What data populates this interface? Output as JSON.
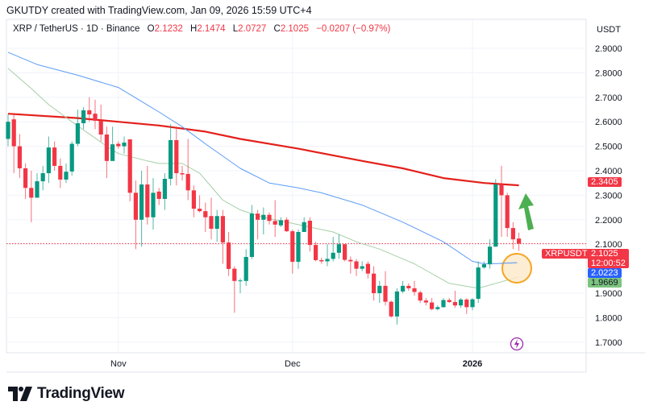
{
  "header": {
    "text": "GKUTDY created with TradingView.com, Jan 09, 2026 15:59 UTC+4"
  },
  "legend": {
    "symbol": "XRP / TetherUS · 1D · Binance",
    "o_label": "O",
    "o": "2.1232",
    "h_label": "H",
    "h": "2.1474",
    "l_label": "L",
    "l": "2.0727",
    "c_label": "C",
    "c": "2.1025",
    "change": "−0.0207 (−0.97%)"
  },
  "price_axis": {
    "unit": "USDT"
  },
  "badges": {
    "ma_red": "2.3405",
    "symbol": "XRPUSDT",
    "last_price": "2.1025",
    "countdown": "12:00:52",
    "ma_blue": "2.0223",
    "ma_green": "1.9669"
  },
  "logo": {
    "text": "TradingView"
  },
  "colors": {
    "up": "#089981",
    "down": "#f23645",
    "ma_red": "#e3201b",
    "ma_blue": "#5b9cf6",
    "ma_green": "#a5cfa7",
    "arrow": "#4caf50",
    "highlight": "#f5a623",
    "lightning": "#9c27b0"
  },
  "chart_data": {
    "type": "candlestick",
    "title": "XRP / TetherUS · 1D · Binance",
    "ylabel": "USDT",
    "ylim": [
      1.65,
      2.95
    ],
    "grid": true,
    "y_ticks": [
      "2.9000",
      "2.8000",
      "2.7000",
      "2.6000",
      "2.5000",
      "2.4000",
      "2.3000",
      "2.2000",
      "2.1000",
      "1.9000",
      "1.8000",
      "1.7000"
    ],
    "x_ticks": [
      {
        "label": "Nov",
        "date": "Nov 1"
      },
      {
        "label": "Dec",
        "date": "Dec 1"
      },
      {
        "label": "2026",
        "date": "Jan 1"
      }
    ],
    "candles_fields": [
      "date",
      "open",
      "high",
      "low",
      "close"
    ],
    "candles": [
      [
        "Oct 13",
        2.53,
        2.63,
        2.5,
        2.6
      ],
      [
        "Oct 14",
        2.61,
        2.63,
        2.39,
        2.5
      ],
      [
        "Oct 15",
        2.5,
        2.55,
        2.37,
        2.41
      ],
      [
        "Oct 16",
        2.41,
        2.43,
        2.285,
        2.33
      ],
      [
        "Oct 17",
        2.33,
        2.4,
        2.19,
        2.29
      ],
      [
        "Oct 18",
        2.29,
        2.39,
        2.29,
        2.357
      ],
      [
        "Oct 19",
        2.357,
        2.42,
        2.32,
        2.39
      ],
      [
        "Oct 20",
        2.39,
        2.54,
        2.35,
        2.495
      ],
      [
        "Oct 21",
        2.495,
        2.52,
        2.4,
        2.42
      ],
      [
        "Oct 22",
        2.42,
        2.45,
        2.33,
        2.364
      ],
      [
        "Oct 23",
        2.364,
        2.43,
        2.35,
        2.396
      ],
      [
        "Oct 24",
        2.397,
        2.52,
        2.38,
        2.51
      ],
      [
        "Oct 25",
        2.51,
        2.65,
        2.5,
        2.594
      ],
      [
        "Oct 26",
        2.594,
        2.66,
        2.57,
        2.647
      ],
      [
        "Oct 27",
        2.647,
        2.7,
        2.6,
        2.63
      ],
      [
        "Oct 28",
        2.633,
        2.69,
        2.57,
        2.604
      ],
      [
        "Oct 29",
        2.604,
        2.67,
        2.52,
        2.548
      ],
      [
        "Oct 30",
        2.548,
        2.58,
        2.37,
        2.44
      ],
      [
        "Oct 31",
        2.44,
        2.58,
        2.44,
        2.508
      ],
      [
        "Nov 1",
        2.51,
        2.52,
        2.49,
        2.5
      ],
      [
        "Nov 2",
        2.5,
        2.54,
        2.47,
        2.515
      ],
      [
        "Nov 3",
        2.528,
        2.53,
        2.275,
        2.31
      ],
      [
        "Nov 4",
        2.31,
        2.36,
        2.08,
        2.2
      ],
      [
        "Nov 5",
        2.2,
        2.4,
        2.09,
        2.344
      ],
      [
        "Nov 6",
        2.344,
        2.42,
        2.18,
        2.21
      ],
      [
        "Nov 7",
        2.21,
        2.37,
        2.16,
        2.31
      ],
      [
        "Nov 8",
        2.315,
        2.33,
        2.26,
        2.285
      ],
      [
        "Nov 9",
        2.285,
        2.39,
        2.24,
        2.367
      ],
      [
        "Nov 10",
        2.367,
        2.59,
        2.34,
        2.525
      ],
      [
        "Nov 11",
        2.525,
        2.58,
        2.34,
        2.39
      ],
      [
        "Nov 12",
        2.39,
        2.42,
        2.36,
        2.385
      ],
      [
        "Nov 13",
        2.387,
        2.53,
        2.28,
        2.32
      ],
      [
        "Nov 14",
        2.32,
        2.34,
        2.21,
        2.245
      ],
      [
        "Nov 15",
        2.245,
        2.3,
        2.23,
        2.235
      ],
      [
        "Nov 16",
        2.235,
        2.27,
        2.15,
        2.21
      ],
      [
        "Nov 17",
        2.215,
        2.29,
        2.12,
        2.163
      ],
      [
        "Nov 18",
        2.163,
        2.24,
        2.11,
        2.215
      ],
      [
        "Nov 19",
        2.215,
        2.24,
        2.02,
        2.107
      ],
      [
        "Nov 20",
        2.107,
        2.15,
        1.97,
        1.999
      ],
      [
        "Nov 21",
        2.0,
        2.01,
        1.82,
        1.95
      ],
      [
        "Nov 22",
        1.95,
        1.96,
        1.9,
        1.952
      ],
      [
        "Nov 23",
        1.95,
        2.08,
        1.93,
        2.048
      ],
      [
        "Nov 24",
        2.048,
        2.26,
        2.04,
        2.225
      ],
      [
        "Nov 25",
        2.225,
        2.24,
        2.12,
        2.2
      ],
      [
        "Nov 26",
        2.2,
        2.25,
        2.14,
        2.22
      ],
      [
        "Nov 27",
        2.22,
        2.23,
        2.18,
        2.195
      ],
      [
        "Nov 28",
        2.195,
        2.28,
        2.13,
        2.18
      ],
      [
        "Nov 29",
        2.177,
        2.21,
        2.17,
        2.198
      ],
      [
        "Nov 30",
        2.2,
        2.21,
        2.15,
        2.153
      ],
      [
        "Dec 1",
        2.153,
        2.16,
        1.98,
        2.028
      ],
      [
        "Dec 2",
        2.028,
        2.16,
        2.0,
        2.15
      ],
      [
        "Dec 3",
        2.15,
        2.21,
        2.15,
        2.19
      ],
      [
        "Dec 4",
        2.196,
        2.21,
        2.07,
        2.097
      ],
      [
        "Dec 5",
        2.097,
        2.11,
        2.03,
        2.035
      ],
      [
        "Dec 6",
        2.035,
        2.045,
        2.02,
        2.03
      ],
      [
        "Dec 7",
        2.03,
        2.1,
        2.01,
        2.04
      ],
      [
        "Dec 8",
        2.04,
        2.13,
        2.03,
        2.065
      ],
      [
        "Dec 9",
        2.065,
        2.14,
        2.04,
        2.1
      ],
      [
        "Dec 10",
        2.1,
        2.1,
        2.03,
        2.036
      ],
      [
        "Dec 11",
        2.036,
        2.05,
        1.98,
        2.03
      ],
      [
        "Dec 12",
        2.03,
        2.04,
        1.97,
        2.0
      ],
      [
        "Dec 13",
        2.0,
        2.03,
        1.99,
        2.01
      ],
      [
        "Dec 14",
        2.02,
        2.03,
        1.96,
        1.98
      ],
      [
        "Dec 15",
        1.98,
        2.01,
        1.87,
        1.9
      ],
      [
        "Dec 16",
        1.9,
        1.95,
        1.86,
        1.93
      ],
      [
        "Dec 17",
        1.93,
        1.99,
        1.85,
        1.865
      ],
      [
        "Dec 18",
        1.865,
        1.87,
        1.8,
        1.805
      ],
      [
        "Dec 19",
        1.805,
        1.92,
        1.772,
        1.907
      ],
      [
        "Dec 20",
        1.907,
        1.95,
        1.9,
        1.93
      ],
      [
        "Dec 21",
        1.93,
        1.94,
        1.91,
        1.92
      ],
      [
        "Dec 22",
        1.92,
        1.95,
        1.89,
        1.905
      ],
      [
        "Dec 23",
        1.903,
        1.91,
        1.86,
        1.87
      ],
      [
        "Dec 24",
        1.87,
        1.88,
        1.85,
        1.862
      ],
      [
        "Dec 25",
        1.862,
        1.88,
        1.83,
        1.835
      ],
      [
        "Dec 26",
        1.835,
        1.85,
        1.83,
        1.843
      ],
      [
        "Dec 27",
        1.843,
        1.88,
        1.84,
        1.872
      ],
      [
        "Dec 28",
        1.872,
        1.88,
        1.86,
        1.864
      ],
      [
        "Dec 29",
        1.864,
        1.91,
        1.84,
        1.85
      ],
      [
        "Dec 30",
        1.85,
        1.88,
        1.84,
        1.874
      ],
      [
        "Dec 31",
        1.874,
        1.88,
        1.815,
        1.843
      ],
      [
        "Jan 1",
        1.843,
        1.88,
        1.83,
        1.875
      ],
      [
        "Jan 2",
        1.877,
        2.03,
        1.86,
        2.005
      ],
      [
        "Jan 3",
        2.005,
        2.03,
        2.0,
        2.018
      ],
      [
        "Jan 4",
        2.018,
        2.12,
        2.0,
        2.09
      ],
      [
        "Jan 5",
        2.09,
        2.366,
        2.09,
        2.344
      ],
      [
        "Jan 6",
        2.344,
        2.42,
        2.13,
        2.3
      ],
      [
        "Jan 7",
        2.3,
        2.31,
        2.13,
        2.166
      ],
      [
        "Jan 8",
        2.166,
        2.19,
        2.08,
        2.12
      ],
      [
        "Jan 9",
        2.1232,
        2.1474,
        2.0727,
        2.1025
      ]
    ],
    "moving_averages": [
      {
        "color": "red",
        "points": [
          [
            "Oct 13",
            2.633
          ],
          [
            "Oct 25",
            2.615
          ],
          [
            "Nov 1",
            2.6
          ],
          [
            "Nov 8",
            2.585
          ],
          [
            "Nov 16",
            2.56
          ],
          [
            "Nov 22",
            2.53
          ],
          [
            "Dec 2",
            2.49
          ],
          [
            "Dec 13",
            2.44
          ],
          [
            "Dec 20",
            2.41
          ],
          [
            "Dec 27",
            2.37
          ],
          [
            "Jan 3",
            2.35
          ],
          [
            "Jan 9",
            2.3405
          ]
        ]
      },
      {
        "color": "blue",
        "points": [
          [
            "Oct 13",
            2.884
          ],
          [
            "Oct 18",
            2.834
          ],
          [
            "Oct 25",
            2.79
          ],
          [
            "Nov 1",
            2.74
          ],
          [
            "Nov 8",
            2.64
          ],
          [
            "Nov 12",
            2.58
          ],
          [
            "Nov 16",
            2.51
          ],
          [
            "Nov 22",
            2.41
          ],
          [
            "Nov 27",
            2.35
          ],
          [
            "Dec 2",
            2.33
          ],
          [
            "Dec 6",
            2.31
          ],
          [
            "Dec 13",
            2.26
          ],
          [
            "Dec 20",
            2.19
          ],
          [
            "Dec 27",
            2.11
          ],
          [
            "Jan 1",
            2.03
          ],
          [
            "Jan 3",
            2.02
          ],
          [
            "Jan 9",
            2.0223
          ]
        ]
      },
      {
        "color": "green",
        "points": [
          [
            "Oct 13",
            2.818
          ],
          [
            "Oct 17",
            2.736
          ],
          [
            "Oct 20",
            2.67
          ],
          [
            "Oct 24",
            2.6
          ],
          [
            "Oct 30",
            2.5
          ],
          [
            "Nov 1",
            2.47
          ],
          [
            "Nov 6",
            2.44
          ],
          [
            "Nov 8",
            2.43
          ],
          [
            "Nov 12",
            2.43
          ],
          [
            "Nov 15",
            2.39
          ],
          [
            "Nov 19",
            2.28
          ],
          [
            "Nov 22",
            2.24
          ],
          [
            "Nov 26",
            2.21
          ],
          [
            "Dec 2",
            2.18
          ],
          [
            "Dec 8",
            2.15
          ],
          [
            "Dec 12",
            2.11
          ],
          [
            "Dec 16",
            2.08
          ],
          [
            "Dec 22",
            2.02
          ],
          [
            "Dec 28",
            1.94
          ],
          [
            "Jan 2",
            1.92
          ],
          [
            "Jan 5",
            1.94
          ],
          [
            "Jan 9",
            1.9669
          ]
        ]
      }
    ],
    "last_price_line": 2.1025
  }
}
